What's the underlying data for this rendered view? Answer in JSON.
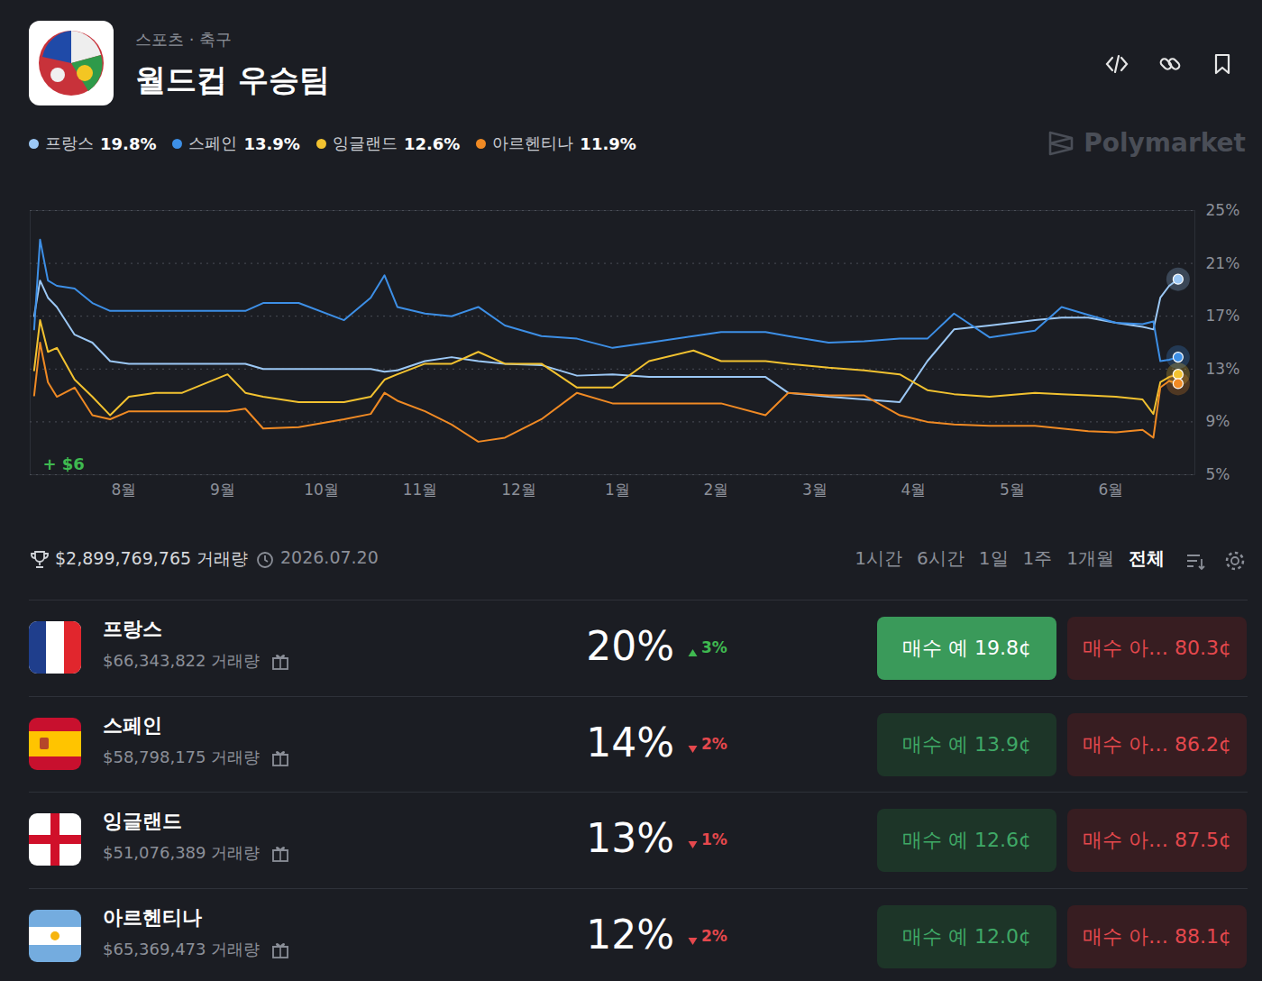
{
  "chart_data": {
    "type": "line",
    "x": [
      7.09,
      7.15,
      7.23,
      7.32,
      7.5,
      7.68,
      7.86,
      8.05,
      8.32,
      8.59,
      9.05,
      9.23,
      9.41,
      9.77,
      10.23,
      10.5,
      10.64,
      10.77,
      11.05,
      11.32,
      11.59,
      11.86,
      12.23,
      12.59,
      12.95,
      13.32,
      13.77,
      14.05,
      14.5,
      14.73,
      15.14,
      15.5,
      15.86,
      16.14,
      16.41,
      16.77,
      17.23,
      17.5,
      17.77,
      18.05,
      18.32,
      18.43,
      18.5,
      18.59,
      18.68
    ],
    "series": [
      {
        "name": "프랑스",
        "color": "#9cc8f5",
        "values": [
          17.0,
          19.7,
          18.4,
          17.7,
          15.6,
          15.0,
          13.6,
          13.4,
          13.4,
          13.4,
          13.4,
          13.4,
          13.0,
          13.0,
          13.0,
          13.0,
          12.8,
          12.9,
          13.6,
          13.9,
          13.6,
          13.4,
          13.3,
          12.5,
          12.6,
          12.4,
          12.4,
          12.4,
          12.4,
          11.2,
          10.9,
          10.7,
          10.5,
          13.6,
          16.0,
          16.3,
          16.7,
          16.9,
          16.9,
          16.5,
          16.2,
          16.0,
          18.4,
          19.3,
          19.8
        ]
      },
      {
        "name": "스페인",
        "color": "#3d8fe6",
        "values": [
          16.0,
          22.8,
          19.7,
          19.3,
          19.1,
          18.0,
          17.4,
          17.4,
          17.4,
          17.4,
          17.4,
          17.4,
          18.0,
          18.0,
          16.7,
          18.4,
          20.1,
          17.7,
          17.2,
          17.0,
          17.7,
          16.3,
          15.5,
          15.3,
          14.6,
          15.0,
          15.5,
          15.8,
          15.8,
          15.5,
          15.0,
          15.1,
          15.3,
          15.3,
          17.2,
          15.4,
          15.9,
          17.7,
          17.1,
          16.5,
          16.4,
          16.6,
          13.6,
          13.7,
          13.9
        ]
      },
      {
        "name": "잉글랜드",
        "color": "#f2c230",
        "values": [
          12.9,
          16.7,
          14.3,
          14.6,
          12.2,
          10.9,
          9.5,
          10.9,
          11.2,
          11.2,
          12.6,
          11.2,
          10.9,
          10.5,
          10.5,
          10.9,
          12.2,
          12.6,
          13.4,
          13.4,
          14.3,
          13.4,
          13.4,
          11.6,
          11.6,
          13.6,
          14.4,
          13.6,
          13.6,
          13.4,
          13.1,
          12.9,
          12.6,
          11.4,
          11.1,
          10.9,
          11.2,
          11.1,
          11.0,
          10.9,
          10.7,
          9.6,
          12.0,
          12.4,
          12.6
        ]
      },
      {
        "name": "아르헨티나",
        "color": "#f08a24",
        "values": [
          11.0,
          15.0,
          12.0,
          10.9,
          11.6,
          9.5,
          9.2,
          9.8,
          9.8,
          9.8,
          9.8,
          10.0,
          8.5,
          8.6,
          9.2,
          9.6,
          11.2,
          10.6,
          9.8,
          8.8,
          7.5,
          7.8,
          9.2,
          11.2,
          10.4,
          10.4,
          10.4,
          10.4,
          9.5,
          11.2,
          11.0,
          11.0,
          9.5,
          9.0,
          8.8,
          8.7,
          8.7,
          8.5,
          8.3,
          8.2,
          8.4,
          7.8,
          11.6,
          12.1,
          11.9
        ]
      }
    ],
    "xlim": [
      7.05,
      18.85
    ],
    "xticks": [
      {
        "value": 8,
        "label": "8월"
      },
      {
        "value": 9,
        "label": "9월"
      },
      {
        "value": 10,
        "label": "10월"
      },
      {
        "value": 11,
        "label": "11월"
      },
      {
        "value": 12,
        "label": "12월"
      },
      {
        "value": 13,
        "label": "1월"
      },
      {
        "value": 14,
        "label": "2월"
      },
      {
        "value": 15,
        "label": "3월"
      },
      {
        "value": 16,
        "label": "4월"
      },
      {
        "value": 17,
        "label": "5월"
      },
      {
        "value": 18,
        "label": "6월"
      }
    ],
    "ylim": [
      5,
      25
    ],
    "yticks": [
      {
        "value": 5,
        "label": "5%"
      },
      {
        "value": 9,
        "label": "9%"
      },
      {
        "value": 13,
        "label": "13%"
      },
      {
        "value": 17,
        "label": "17%"
      },
      {
        "value": 21,
        "label": "21%"
      },
      {
        "value": 25,
        "label": "25%"
      }
    ],
    "grid": true,
    "legend": "top",
    "annotations": [
      "+ $6"
    ]
  },
  "page": {
    "breadcrumb": "스포츠 · 축구",
    "title": "월드컵 우승팀",
    "brand": "Polymarket",
    "legend_values": [
      "19.8%",
      "13.9%",
      "12.6%",
      "11.9%"
    ],
    "volume": "$2,899,769,765 거래량",
    "end_date": "2026.07.20",
    "ranges": [
      "1시간",
      "6시간",
      "1일",
      "1주",
      "1개월",
      "전체"
    ],
    "active_range": "전체",
    "outcomes": [
      {
        "name": "프랑스",
        "volume": "$66,343,822 거래량",
        "chance": "20%",
        "change": "3%",
        "direction": "up",
        "buy_yes": "매수 예 19.8¢",
        "buy_no": "매수 아… 80.3¢"
      },
      {
        "name": "스페인",
        "volume": "$58,798,175 거래량",
        "chance": "14%",
        "change": "2%",
        "direction": "down",
        "buy_yes": "매수 예 13.9¢",
        "buy_no": "매수 아… 86.2¢"
      },
      {
        "name": "잉글랜드",
        "volume": "$51,076,389 거래량",
        "chance": "13%",
        "change": "1%",
        "direction": "down",
        "buy_yes": "매수 예 12.6¢",
        "buy_no": "매수 아… 87.5¢"
      },
      {
        "name": "아르헨티나",
        "volume": "$65,369,473 거래량",
        "chance": "12%",
        "change": "2%",
        "direction": "down",
        "buy_yes": "매수 예 12.0¢",
        "buy_no": "매수 아… 88.1¢"
      }
    ]
  }
}
